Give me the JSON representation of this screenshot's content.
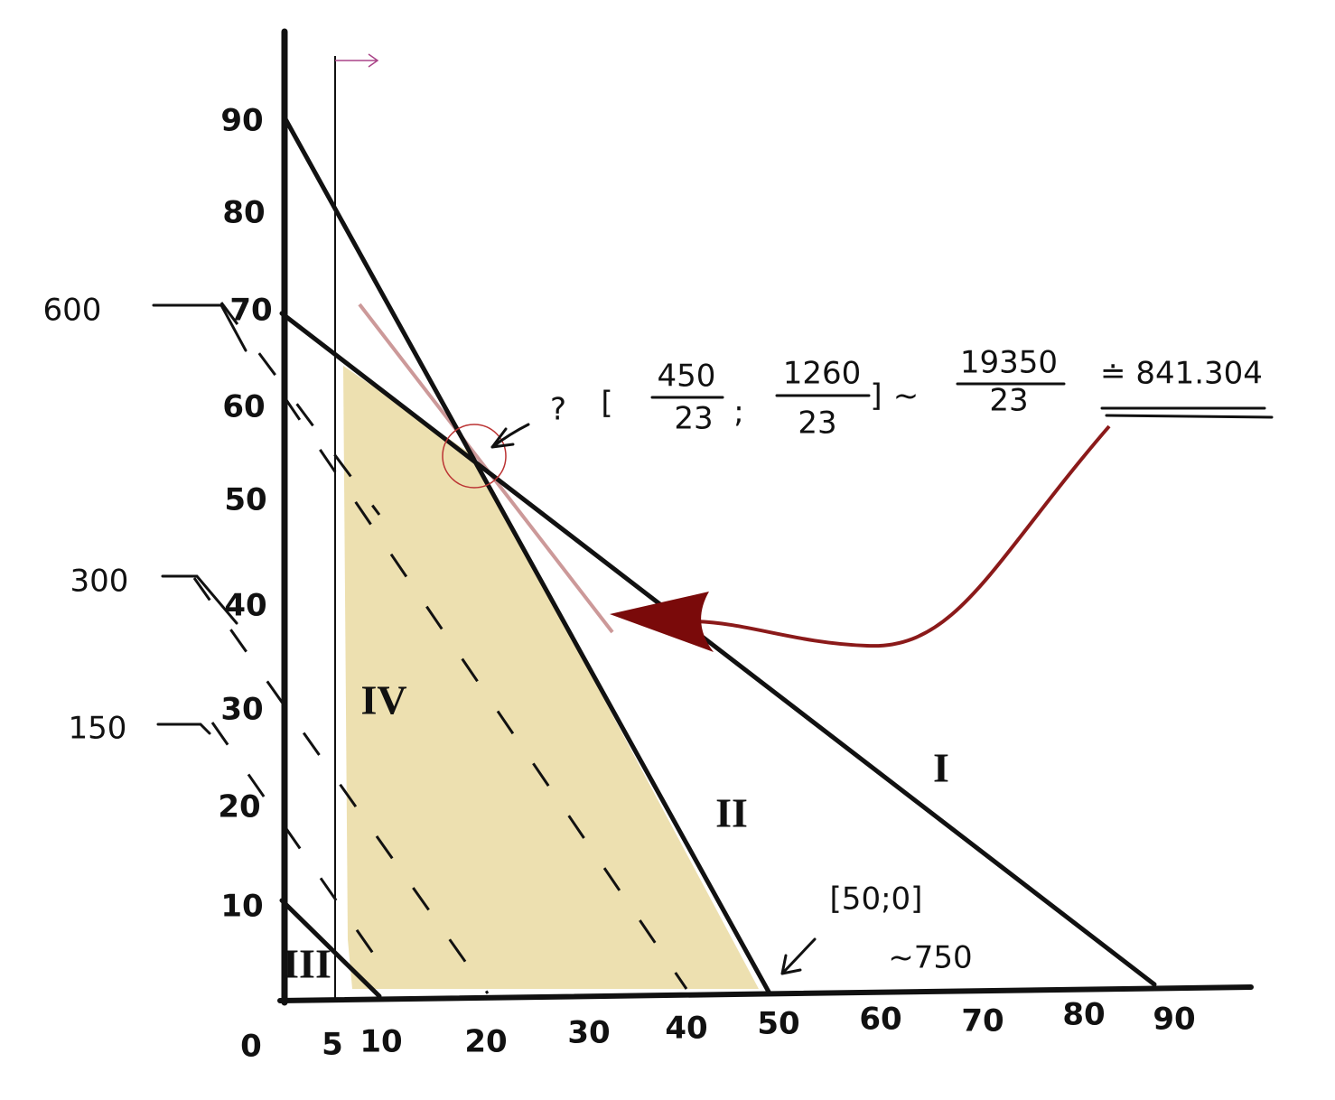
{
  "x_axis": {
    "labels": [
      "0",
      "5",
      "10",
      "20",
      "30",
      "40",
      "50",
      "60",
      "70",
      "80",
      "90"
    ]
  },
  "y_axis": {
    "labels": [
      "10",
      "20",
      "30",
      "40",
      "50",
      "60",
      "70",
      "80",
      "90"
    ]
  },
  "isoline_labels": [
    "600",
    "300",
    "150"
  ],
  "regions": [
    "I",
    "II",
    "III",
    "IV"
  ],
  "optimum": {
    "question": "?",
    "open": "[",
    "close": "]",
    "separator": ";",
    "x": {
      "numerator": "450",
      "denominator": "23"
    },
    "y": {
      "numerator": "1260",
      "denominator": "23"
    },
    "approx": "~",
    "value": {
      "numerator": "19350",
      "denominator": "23"
    },
    "result": "≐ 841.304"
  },
  "corner": {
    "point": "[50;0]",
    "value": "~750"
  }
}
